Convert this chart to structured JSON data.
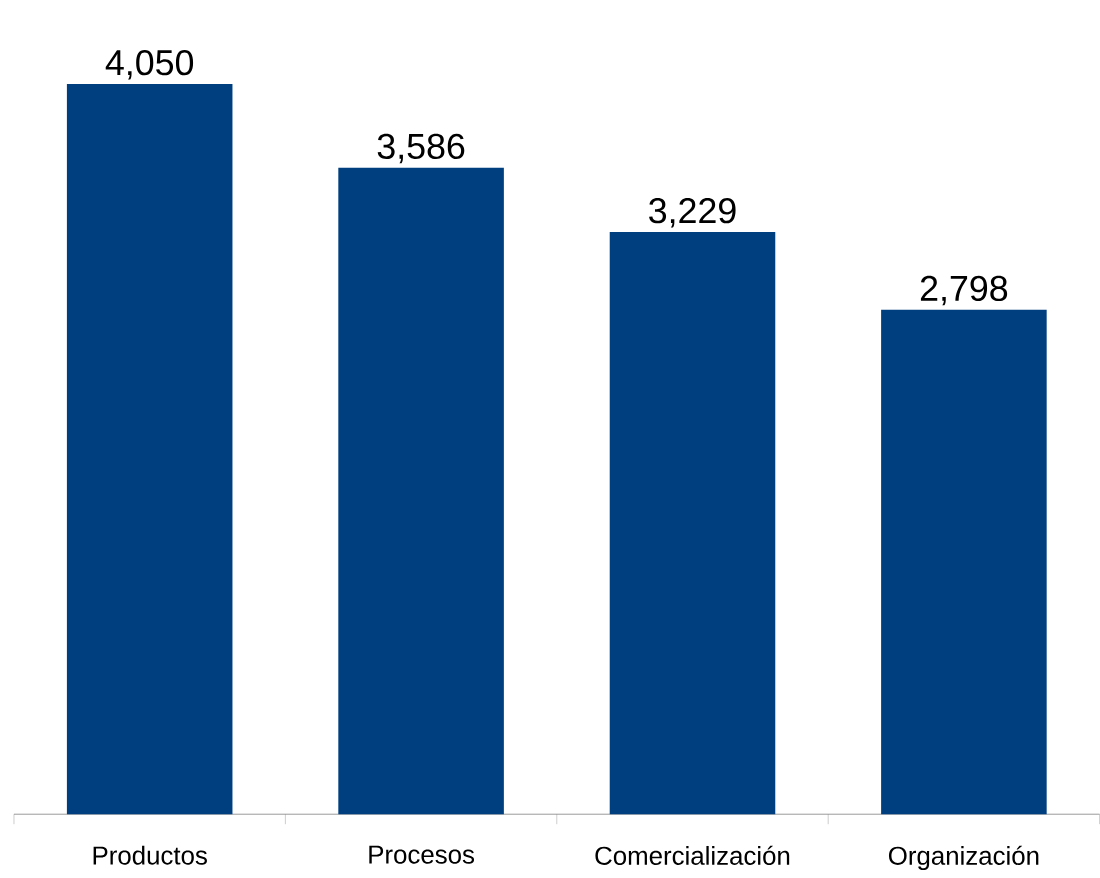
{
  "chart_data": {
    "type": "bar",
    "categories": [
      "Productos",
      "Procesos",
      "Comercialización",
      "Organización"
    ],
    "values": [
      4050,
      3586,
      3229,
      2798
    ],
    "value_labels": [
      "4,050",
      "3,586",
      "3,229",
      "2,798"
    ],
    "color": "#003f7f"
  }
}
